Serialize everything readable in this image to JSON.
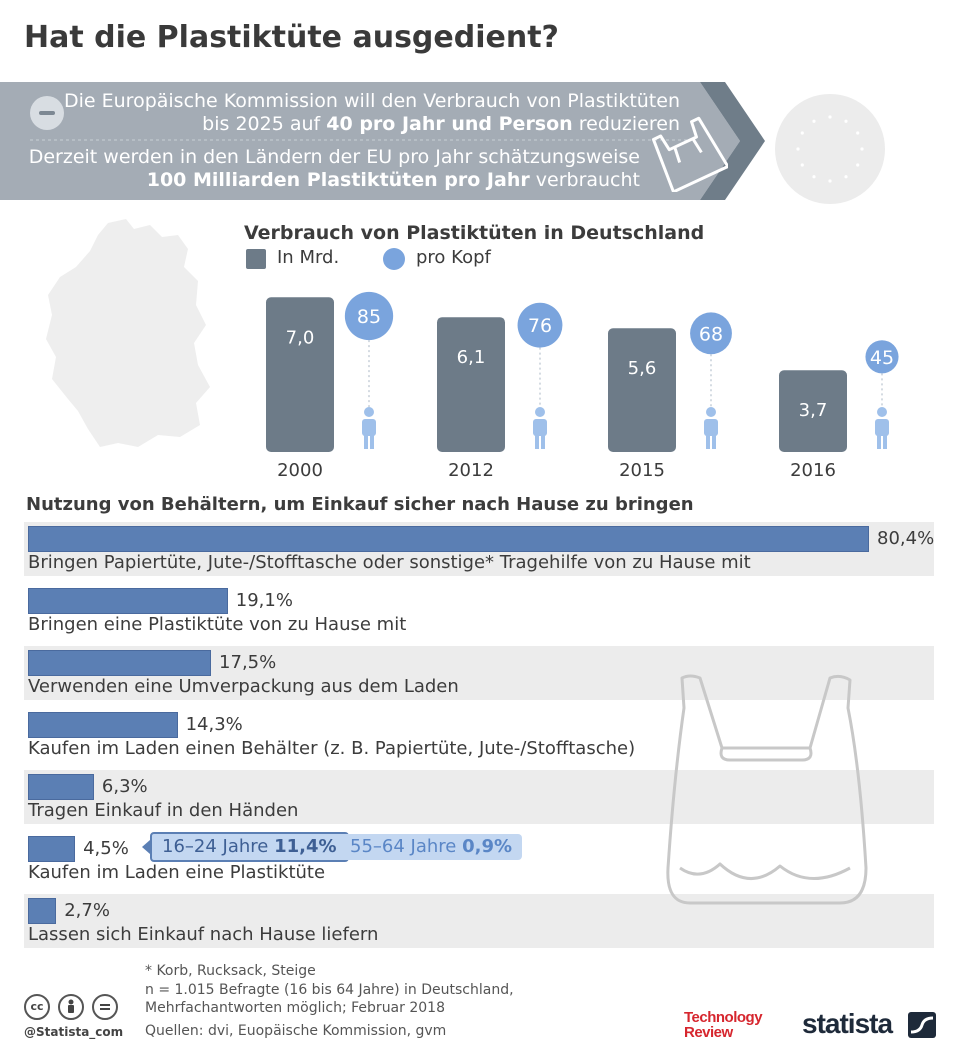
{
  "title": "Hat die Plastiktüte ausgedient?",
  "banner": {
    "line1": "Die Europäische Kommission will den Verbrauch von Plastiktüten",
    "line2_pre": "bis 2025 auf ",
    "line2_bold": "40 pro Jahr und Person",
    "line2_post": " reduzieren",
    "line3": "Derzeit werden in den Ländern der EU pro Jahr schätzungsweise",
    "line4_bold": "100 Milliarden Plastiktüten pro Jahr",
    "line4_post": " verbraucht"
  },
  "colors": {
    "banner": "#a4acb5",
    "banner_dark": "#6f7d89",
    "bar_dark": "#6d7b88",
    "circle_blue": "#7aa4dd",
    "bar_blue": "#5b7fb4",
    "pill_dark": "#5b7fb4",
    "pill_light": "#c3d7f1",
    "row_bg": "#ececec"
  },
  "chart_data": [
    {
      "type": "bar",
      "title": "Verbrauch von Plastiktüten in Deutschland",
      "categories": [
        "2000",
        "2012",
        "2015",
        "2016"
      ],
      "series": [
        {
          "name": "In Mrd.",
          "values": [
            7.0,
            6.1,
            5.6,
            3.7
          ],
          "labels": [
            "7,0",
            "6,1",
            "5,6",
            "3,7"
          ]
        },
        {
          "name": "pro Kopf",
          "values": [
            85,
            76,
            68,
            45
          ],
          "labels": [
            "85",
            "76",
            "68",
            "45"
          ]
        }
      ]
    },
    {
      "type": "bar",
      "title": "Nutzung von Behältern, um Einkauf sicher nach Hause zu bringen",
      "orientation": "horizontal",
      "categories": [
        "Bringen Papiertüte, Jute-/Stofftasche oder sonstige* Tragehilfe von zu Hause mit",
        "Bringen eine Plastiktüte von zu Hause mit",
        "Verwenden eine Umverpackung aus dem Laden",
        "Kaufen im Laden einen Behälter (z. B. Papiertüte, Jute-/Stofftasche)",
        "Tragen Einkauf in den Händen",
        "Kaufen im Laden eine Plastiktüte",
        "Lassen sich Einkauf nach Hause liefern"
      ],
      "values": [
        80.4,
        19.1,
        17.5,
        14.3,
        6.3,
        4.5,
        2.7
      ],
      "labels": [
        "80,4%",
        "19,1%",
        "17,5%",
        "14,3%",
        "6,3%",
        "4,5%",
        "2,7%"
      ],
      "annotations": [
        {
          "label": "16–24 Jahre",
          "value": "11,4%"
        },
        {
          "label": "55–64 Jahre",
          "value": "0,9%"
        }
      ]
    }
  ],
  "footer": {
    "note1": "* Korb, Rucksack, Steige",
    "note2": "n = 1.015 Befragte (16 bis 64 Jahre) in Deutschland,",
    "note3": "Mehrfachantworten möglich; Februar 2018",
    "sources": "Quellen: dvi, Euopäische Kommission, gvm",
    "handle": "@Statista_com",
    "cc_icons": [
      "cc-icon",
      "by-icon",
      "nd-icon"
    ],
    "tr_line1": "Technology",
    "tr_line2": "Review",
    "statista": "statista"
  }
}
